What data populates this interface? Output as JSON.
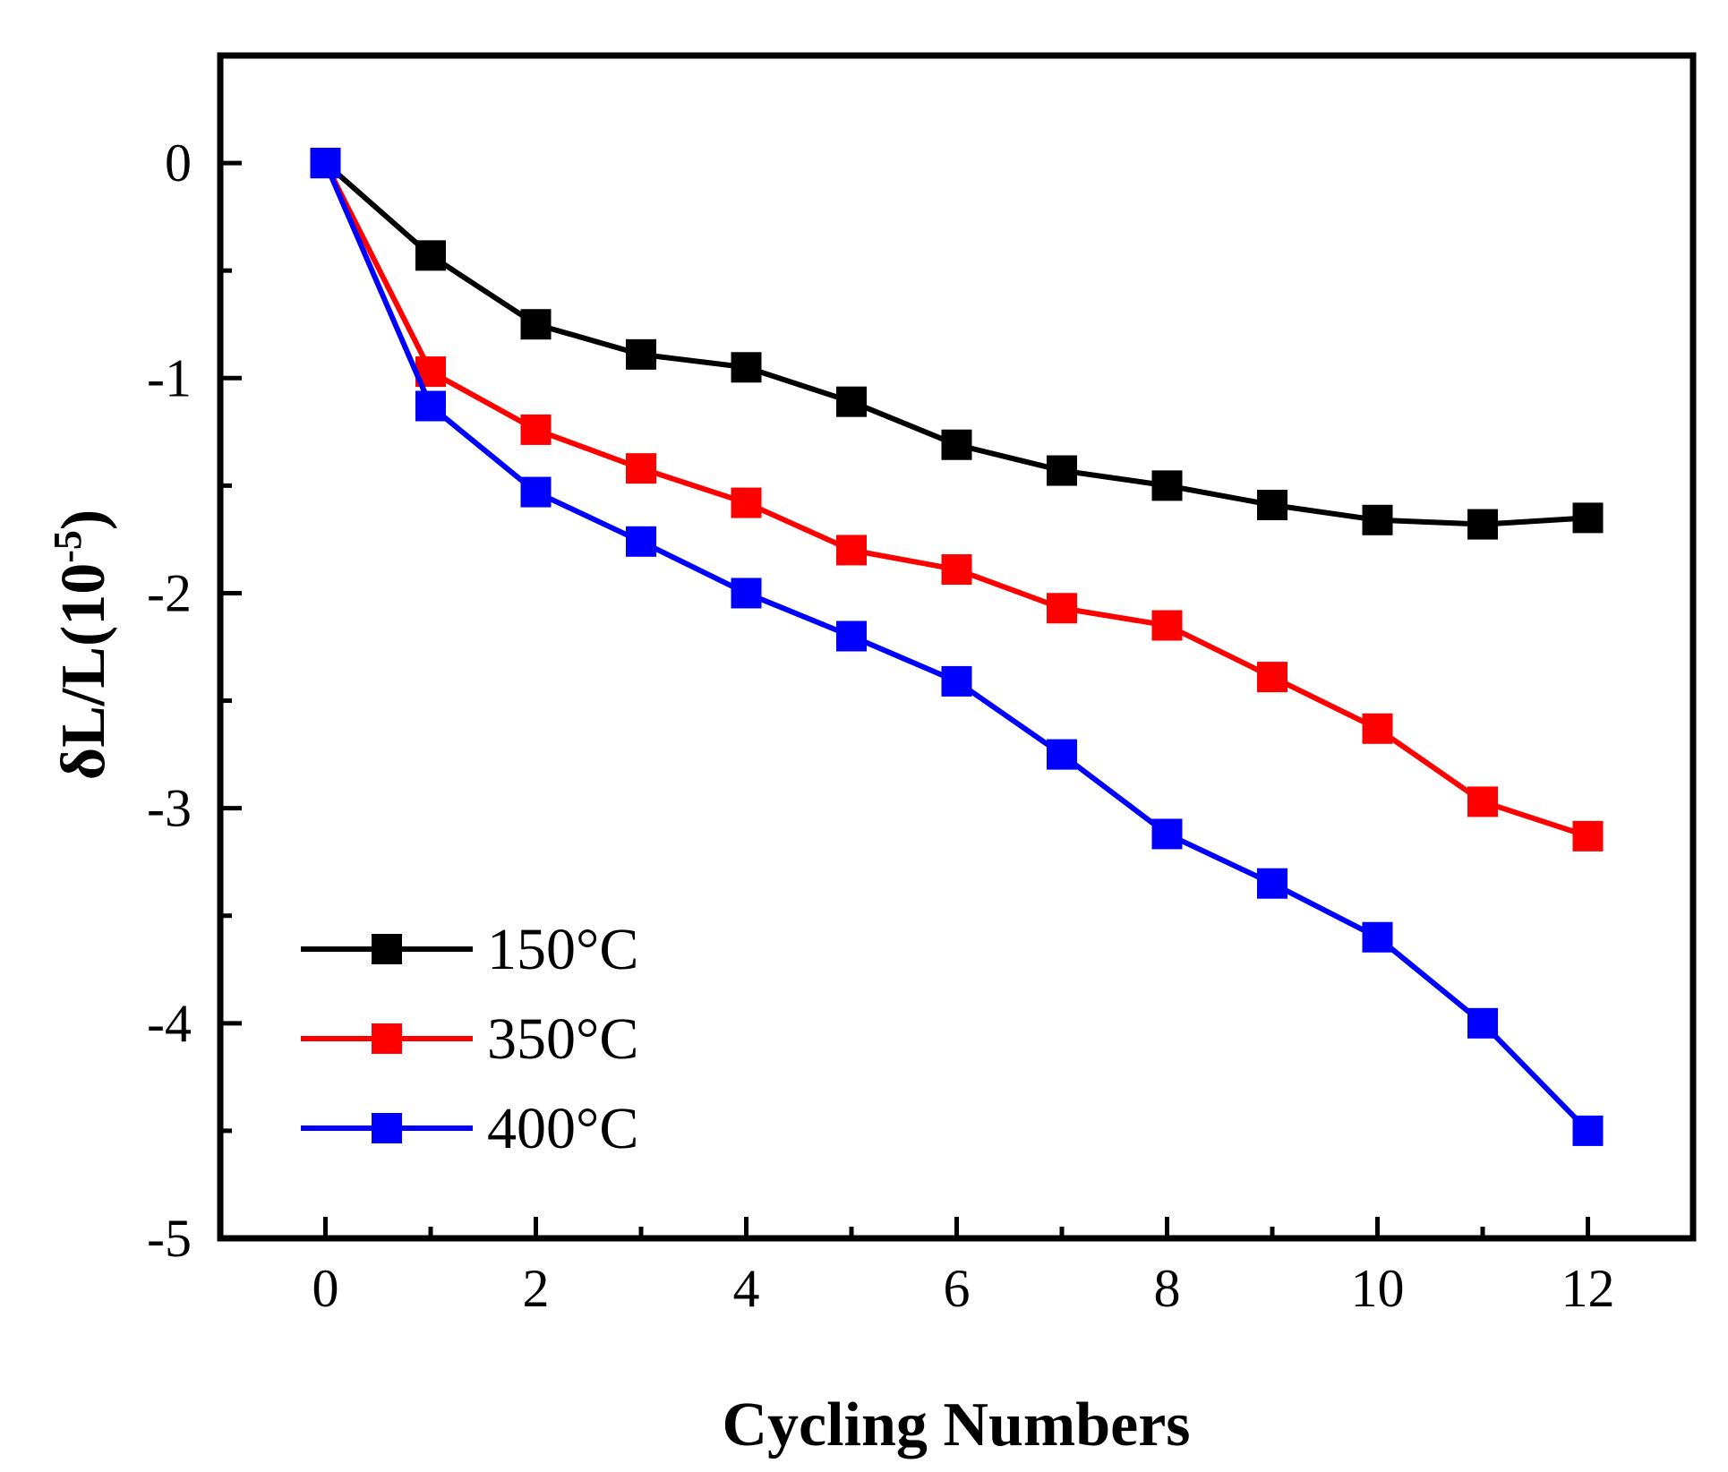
{
  "chart_data": {
    "type": "line",
    "title": "",
    "xlabel": "Cycling Numbers",
    "ylabel_main": "δL/L(10",
    "ylabel_exp": "-5",
    "ylabel_close": ")",
    "xlim": [
      -1,
      13
    ],
    "ylim": [
      -5,
      0.5
    ],
    "xticks": [
      0,
      2,
      4,
      6,
      8,
      10,
      12
    ],
    "xtick_labels": [
      "0",
      "2",
      "4",
      "6",
      "8",
      "10",
      "12"
    ],
    "yticks": [
      0,
      -1,
      -2,
      -3,
      -4,
      -5
    ],
    "ytick_labels": [
      "0",
      "-1",
      "-2",
      "-3",
      "-4",
      "-5"
    ],
    "x": [
      0,
      1,
      2,
      3,
      4,
      5,
      6,
      7,
      8,
      9,
      10,
      11,
      12
    ],
    "grid": false,
    "legend_position": "bottom-left",
    "marker": "square",
    "series": [
      {
        "name": "150°C",
        "color": "#000000",
        "values": [
          0,
          -0.43,
          -0.75,
          -0.89,
          -0.95,
          -1.11,
          -1.31,
          -1.43,
          -1.5,
          -1.59,
          -1.66,
          -1.68,
          -1.65
        ]
      },
      {
        "name": "350°C",
        "color": "#ff0000",
        "values": [
          0,
          -0.97,
          -1.24,
          -1.42,
          -1.58,
          -1.8,
          -1.89,
          -2.07,
          -2.15,
          -2.39,
          -2.63,
          -2.97,
          -3.13
        ]
      },
      {
        "name": "400°C",
        "color": "#0000ff",
        "values": [
          0,
          -1.13,
          -1.53,
          -1.76,
          -2.0,
          -2.2,
          -2.41,
          -2.75,
          -3.12,
          -3.35,
          -3.6,
          -4.0,
          -4.5
        ]
      }
    ]
  }
}
